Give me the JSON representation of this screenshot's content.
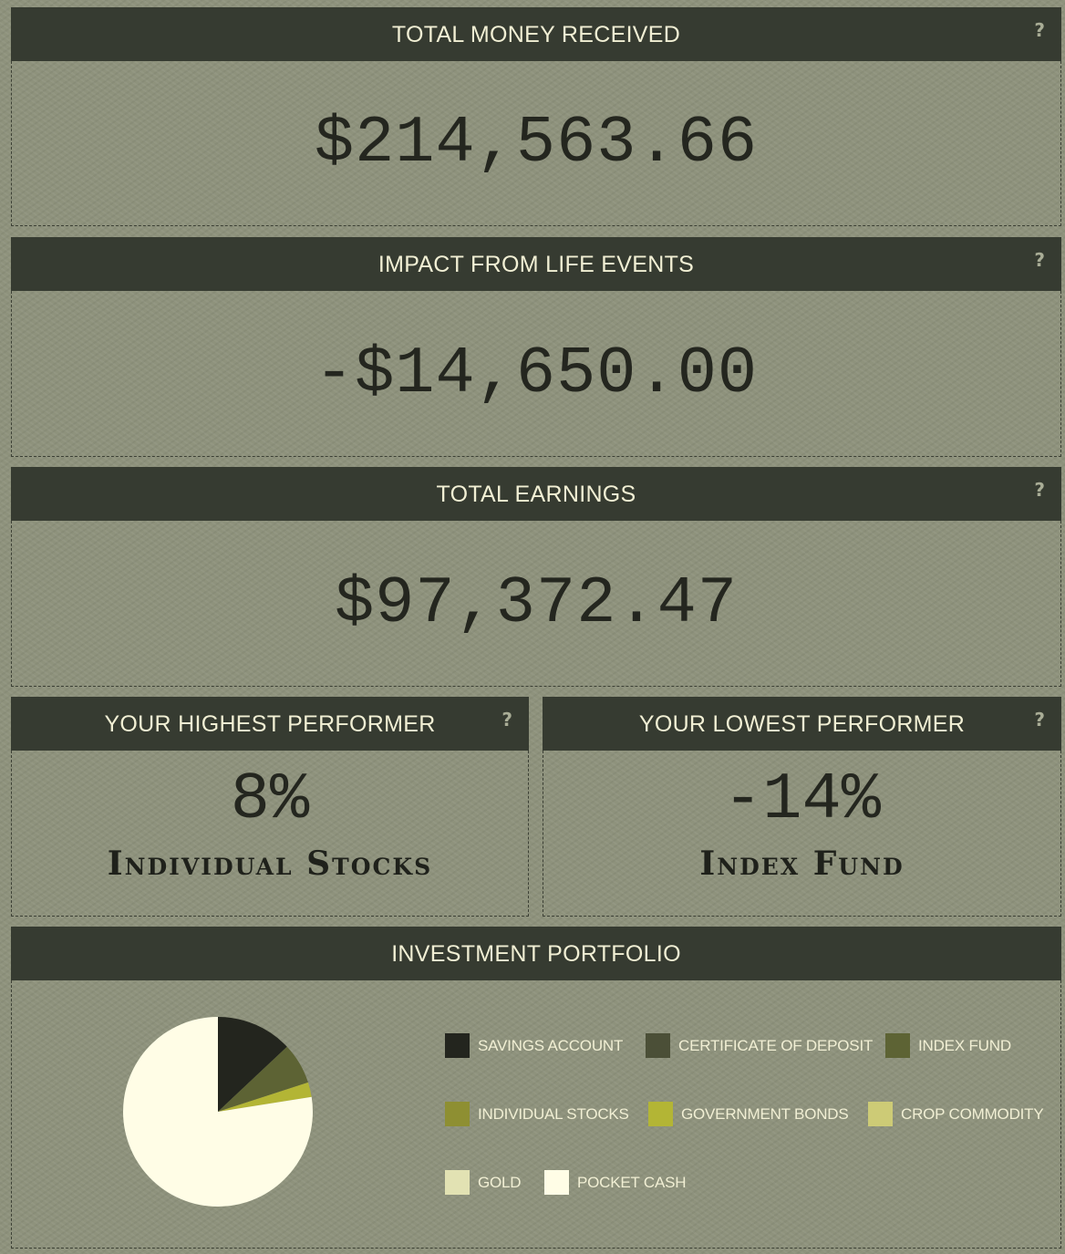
{
  "total_money": {
    "title": "TOTAL MONEY RECEIVED",
    "value": "$214,563.66",
    "help": "?"
  },
  "life_events": {
    "title": "IMPACT FROM LIFE EVENTS",
    "value": "-$14,650.00",
    "help": "?"
  },
  "total_earnings": {
    "title": "TOTAL EARNINGS",
    "value": "$97,372.47",
    "help": "?"
  },
  "highest": {
    "title": "YOUR HIGHEST PERFORMER",
    "percent": "8%",
    "name": "Individual Stocks",
    "help": "?"
  },
  "lowest": {
    "title": "YOUR LOWEST PERFORMER",
    "percent": "-14%",
    "name": "Index Fund",
    "help": "?"
  },
  "portfolio": {
    "title": "INVESTMENT PORTFOLIO",
    "legend": [
      {
        "label": "SAVINGS ACCOUNT",
        "color": "#23251e"
      },
      {
        "label": "CERTIFICATE OF DEPOSIT",
        "color": "#4b4f37"
      },
      {
        "label": "INDEX FUND",
        "color": "#5d6334"
      },
      {
        "label": "INDIVIDUAL STOCKS",
        "color": "#8e8f32"
      },
      {
        "label": "GOVERNMENT BONDS",
        "color": "#b3b535"
      },
      {
        "label": "CROP COMMODITY",
        "color": "#cdcb76"
      },
      {
        "label": "GOLD",
        "color": "#e2e2b3"
      },
      {
        "label": "POCKET CASH",
        "color": "#fffde6"
      }
    ]
  },
  "chart_data": {
    "type": "pie",
    "categories": [
      "SAVINGS ACCOUNT",
      "CERTIFICATE OF DEPOSIT",
      "INDEX FUND",
      "INDIVIDUAL STOCKS",
      "GOVERNMENT BONDS",
      "CROP COMMODITY",
      "GOLD",
      "POCKET CASH"
    ],
    "values": [
      13,
      0,
      7,
      0,
      2.5,
      0,
      0,
      77.5
    ],
    "colors": [
      "#23251e",
      "#4b4f37",
      "#5d6334",
      "#8e8f32",
      "#b3b535",
      "#cdcb76",
      "#e2e2b3",
      "#fffde6"
    ]
  }
}
